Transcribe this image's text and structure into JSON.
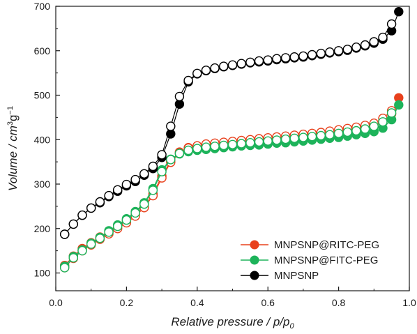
{
  "chart_data": {
    "type": "scatter",
    "title": "",
    "xlabel": "Relative pressure / p/p₀",
    "ylabel": "Volume / cm³g⁻¹",
    "xlim": [
      0.0,
      1.0
    ],
    "ylim": [
      60,
      700
    ],
    "x_ticks": [
      "0.0",
      "0.2",
      "0.4",
      "0.6",
      "0.8",
      "1.0"
    ],
    "y_ticks": [
      "100",
      "200",
      "300",
      "400",
      "500",
      "600",
      "700"
    ],
    "legend_position": "bottom-right",
    "grid": false,
    "series": [
      {
        "name": "MNPSNP@RITC-PEG",
        "color": "#e8401c",
        "marker": "filled-circle",
        "x": [
          0.025,
          0.05,
          0.075,
          0.1,
          0.125,
          0.15,
          0.175,
          0.2,
          0.225,
          0.25,
          0.275,
          0.3,
          0.325,
          0.35,
          0.375,
          0.4,
          0.425,
          0.45,
          0.475,
          0.5,
          0.525,
          0.55,
          0.575,
          0.6,
          0.625,
          0.65,
          0.675,
          0.7,
          0.725,
          0.75,
          0.775,
          0.8,
          0.825,
          0.85,
          0.875,
          0.9,
          0.925,
          0.95,
          0.97
        ],
        "y": [
          117,
          138,
          155,
          168,
          181,
          193,
          206,
          218,
          232,
          250,
          278,
          318,
          352,
          372,
          382,
          386,
          389,
          391,
          393,
          395,
          397,
          399,
          401,
          403,
          405,
          407,
          409,
          411,
          413,
          415,
          417,
          420,
          422,
          425,
          428,
          432,
          440,
          458,
          494
        ]
      },
      {
        "name": "MNPSNP@RITC-PEG (desorption)",
        "color": "#e8401c",
        "marker": "open-circle",
        "x": [
          0.025,
          0.05,
          0.075,
          0.1,
          0.125,
          0.15,
          0.175,
          0.2,
          0.225,
          0.25,
          0.275,
          0.3,
          0.325,
          0.35,
          0.375,
          0.4,
          0.425,
          0.45,
          0.475,
          0.5,
          0.525,
          0.55,
          0.575,
          0.6,
          0.625,
          0.65,
          0.675,
          0.7,
          0.725,
          0.75,
          0.775,
          0.8,
          0.825,
          0.85,
          0.875,
          0.9,
          0.925,
          0.95
        ],
        "y": [
          112,
          133,
          150,
          163,
          176,
          188,
          200,
          213,
          228,
          247,
          274,
          314,
          349,
          370,
          381,
          386,
          390,
          392,
          394,
          396,
          398,
          400,
          402,
          404,
          406,
          408,
          410,
          412,
          414,
          416,
          419,
          422,
          425,
          428,
          432,
          437,
          448,
          465
        ]
      },
      {
        "name": "MNPSNP@FITC-PEG",
        "color": "#1db35a",
        "marker": "filled-circle",
        "x": [
          0.025,
          0.05,
          0.075,
          0.1,
          0.125,
          0.15,
          0.175,
          0.2,
          0.225,
          0.25,
          0.275,
          0.3,
          0.325,
          0.35,
          0.375,
          0.4,
          0.425,
          0.45,
          0.475,
          0.5,
          0.525,
          0.55,
          0.575,
          0.6,
          0.625,
          0.65,
          0.675,
          0.7,
          0.725,
          0.75,
          0.775,
          0.8,
          0.825,
          0.85,
          0.875,
          0.9,
          0.925,
          0.95,
          0.97
        ],
        "y": [
          115,
          137,
          152,
          167,
          180,
          195,
          208,
          222,
          238,
          258,
          290,
          332,
          356,
          368,
          373,
          376,
          378,
          380,
          382,
          384,
          386,
          387,
          388,
          390,
          392,
          393,
          395,
          397,
          399,
          401,
          403,
          405,
          408,
          411,
          414,
          418,
          426,
          445,
          478
        ]
      },
      {
        "name": "MNPSNP@FITC-PEG (desorption)",
        "color": "#1db35a",
        "marker": "open-circle",
        "x": [
          0.025,
          0.05,
          0.075,
          0.1,
          0.125,
          0.15,
          0.175,
          0.2,
          0.225,
          0.25,
          0.275,
          0.3,
          0.325,
          0.35,
          0.375,
          0.4,
          0.425,
          0.45,
          0.475,
          0.5,
          0.525,
          0.55,
          0.575,
          0.6,
          0.625,
          0.65,
          0.675,
          0.7,
          0.725,
          0.75,
          0.775,
          0.8,
          0.825,
          0.85,
          0.875,
          0.9,
          0.925,
          0.95
        ],
        "y": [
          112,
          134,
          150,
          165,
          178,
          192,
          205,
          219,
          235,
          255,
          286,
          328,
          355,
          369,
          376,
          380,
          383,
          385,
          387,
          389,
          391,
          393,
          395,
          397,
          399,
          401,
          403,
          405,
          407,
          409,
          411,
          414,
          417,
          420,
          424,
          430,
          440,
          460
        ]
      },
      {
        "name": "MNPSNP",
        "color": "#000000",
        "marker": "filled-circle",
        "x": [
          0.025,
          0.05,
          0.075,
          0.1,
          0.125,
          0.15,
          0.175,
          0.2,
          0.225,
          0.25,
          0.275,
          0.3,
          0.325,
          0.35,
          0.375,
          0.4,
          0.425,
          0.45,
          0.475,
          0.5,
          0.525,
          0.55,
          0.575,
          0.6,
          0.625,
          0.65,
          0.675,
          0.7,
          0.725,
          0.75,
          0.775,
          0.8,
          0.825,
          0.85,
          0.875,
          0.9,
          0.925,
          0.95,
          0.97
        ],
        "y": [
          187,
          210,
          230,
          246,
          258,
          272,
          284,
          296,
          306,
          320,
          335,
          360,
          413,
          480,
          530,
          548,
          555,
          560,
          564,
          567,
          570,
          573,
          575,
          577,
          580,
          582,
          584,
          586,
          589,
          592,
          595,
          598,
          601,
          606,
          611,
          617,
          626,
          645,
          688
        ]
      },
      {
        "name": "MNPSNP (desorption)",
        "color": "#000000",
        "marker": "open-circle",
        "x": [
          0.025,
          0.05,
          0.075,
          0.1,
          0.125,
          0.15,
          0.175,
          0.2,
          0.225,
          0.25,
          0.275,
          0.3,
          0.325,
          0.35,
          0.375,
          0.4,
          0.425,
          0.45,
          0.475,
          0.5,
          0.525,
          0.55,
          0.575,
          0.6,
          0.625,
          0.65,
          0.675,
          0.7,
          0.725,
          0.75,
          0.775,
          0.8,
          0.825,
          0.85,
          0.875,
          0.9,
          0.925,
          0.95
        ],
        "y": [
          187,
          210,
          230,
          246,
          260,
          274,
          287,
          299,
          310,
          323,
          340,
          366,
          430,
          497,
          533,
          549,
          556,
          561,
          565,
          568,
          571,
          574,
          577,
          579,
          582,
          584,
          586,
          588,
          591,
          594,
          597,
          600,
          603,
          608,
          613,
          620,
          630,
          660
        ]
      }
    ],
    "legend": [
      {
        "label": "MNPSNP@RITC-PEG",
        "color": "#e8401c"
      },
      {
        "label": "MNPSNP@FITC-PEG",
        "color": "#1db35a"
      },
      {
        "label": "MNPSNP",
        "color": "#000000"
      }
    ]
  }
}
